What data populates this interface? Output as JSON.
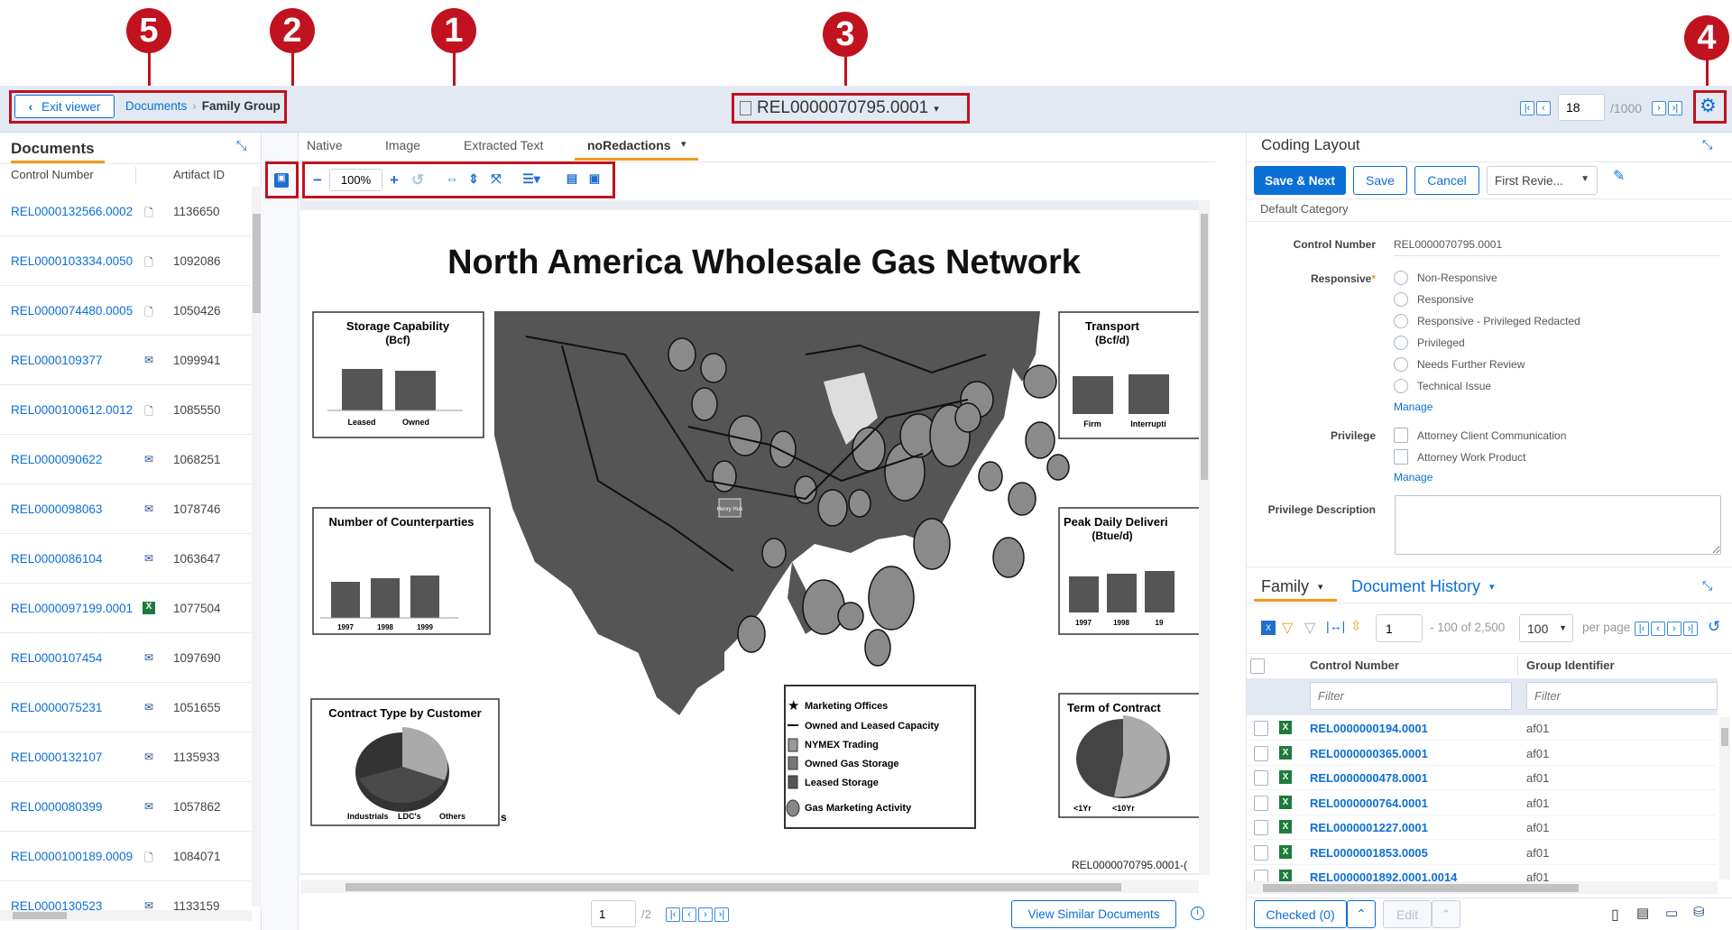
{
  "annotations": [
    "1",
    "2",
    "3",
    "4",
    "5"
  ],
  "header": {
    "exit_label": "Exit viewer",
    "breadcrumb": [
      "Documents",
      "Family Group"
    ],
    "doc_title": "REL0000070795.0001",
    "page_input": "18",
    "page_total": "/1000"
  },
  "documents_panel": {
    "title": "Documents",
    "columns": [
      "Control Number",
      "Artifact ID"
    ],
    "rows": [
      {
        "cn": "REL0000132566.0002",
        "icon": "file",
        "aid": "1136650"
      },
      {
        "cn": "REL0000103334.0050",
        "icon": "file",
        "aid": "1092086"
      },
      {
        "cn": "REL0000074480.0005",
        "icon": "file",
        "aid": "1050426"
      },
      {
        "cn": "REL0000109377",
        "icon": "email",
        "aid": "1099941"
      },
      {
        "cn": "REL0000100612.0012",
        "icon": "file",
        "aid": "1085550"
      },
      {
        "cn": "REL0000090622",
        "icon": "email",
        "aid": "1068251"
      },
      {
        "cn": "REL0000098063",
        "icon": "email",
        "aid": "1078746"
      },
      {
        "cn": "REL0000086104",
        "icon": "email",
        "aid": "1063647"
      },
      {
        "cn": "REL0000097199.0001",
        "icon": "excel",
        "aid": "1077504"
      },
      {
        "cn": "REL0000107454",
        "icon": "email",
        "aid": "1097690"
      },
      {
        "cn": "REL0000075231",
        "icon": "email",
        "aid": "1051655"
      },
      {
        "cn": "REL0000132107",
        "icon": "email",
        "aid": "1135933"
      },
      {
        "cn": "REL0000080399",
        "icon": "email",
        "aid": "1057862"
      },
      {
        "cn": "REL0000100189.0009",
        "icon": "file",
        "aid": "1084071"
      },
      {
        "cn": "REL0000130523",
        "icon": "email",
        "aid": "1133159"
      }
    ]
  },
  "viewer": {
    "tabs": [
      "Native",
      "Image",
      "Extracted Text",
      "noRedactions"
    ],
    "active_tab": "noRedactions",
    "zoom": "100%",
    "page_input": "1",
    "page_total": "/2",
    "view_similar": "View Similar Documents",
    "document": {
      "title": "North America Wholesale Gas Network",
      "storage": {
        "title": "Storage Capability",
        "unit": "(Bcf)",
        "bars": [
          "Leased",
          "Owned"
        ]
      },
      "transport": {
        "title": "Transport",
        "unit": "(Bcf/d)",
        "bars": [
          "Firm",
          "Interrupti"
        ]
      },
      "counterparties": {
        "title": "Number of Counterparties",
        "bars": [
          "1997",
          "1998",
          "1999"
        ]
      },
      "peak": {
        "title": "Peak Daily Deliveri",
        "unit": "(Btue/d)",
        "bars": [
          "1997",
          "1998",
          "19"
        ]
      },
      "contract_type": {
        "title": "Contract Type by Customer",
        "legend": [
          "Industrials",
          "LDC's",
          "Others"
        ]
      },
      "term": {
        "title": "Term of Contract",
        "legend": [
          "<1Yr",
          "<10Yr"
        ]
      },
      "legend": [
        "Marketing Offices",
        "Owned and Leased Capacity",
        "NYMEX Trading",
        "Owned Gas Storage",
        "Leased Storage",
        "Gas Marketing Activity"
      ],
      "hub_label": "Henry Hub",
      "stray": "s",
      "footer": "REL0000070795.0001-("
    }
  },
  "coding": {
    "title": "Coding Layout",
    "save_next": "Save & Next",
    "save": "Save",
    "cancel": "Cancel",
    "layout_select": "First Revie...",
    "category": "Default Category",
    "control_number_label": "Control Number",
    "control_number_value": "REL0000070795.0001",
    "responsive_label": "Responsive",
    "required_mark": "*",
    "responsive_options": [
      "Non-Responsive",
      "Responsive",
      "Responsive - Privileged Redacted",
      "Privileged",
      "Needs Further Review",
      "Technical Issue"
    ],
    "manage": "Manage",
    "privilege_label": "Privilege",
    "privilege_options": [
      "Attorney Client Communication",
      "Attorney Work Product"
    ],
    "privilege_desc_label": "Privilege Description",
    "privilege_desc_value": ""
  },
  "family": {
    "tabs": [
      "Family",
      "Document History"
    ],
    "page_input": "1",
    "range": "- 100 of 2,500",
    "per_page_value": "100",
    "per_page_label": "per page",
    "columns": [
      "Control Number",
      "Group Identifier"
    ],
    "filter_placeholder": "Filter",
    "rows": [
      {
        "cn": "REL0000000194.0001",
        "gi": "af01"
      },
      {
        "cn": "REL0000000365.0001",
        "gi": "af01"
      },
      {
        "cn": "REL0000000478.0001",
        "gi": "af01"
      },
      {
        "cn": "REL0000000764.0001",
        "gi": "af01"
      },
      {
        "cn": "REL0000001227.0001",
        "gi": "af01"
      },
      {
        "cn": "REL0000001853.0005",
        "gi": "af01"
      },
      {
        "cn": "REL0000001892.0001.0014",
        "gi": "af01"
      }
    ],
    "checked": "Checked (0)",
    "edit": "Edit"
  },
  "colors": {
    "accent": "#0b6fd6",
    "annotation": "#c1121f",
    "tab_underline": "#f29a1f",
    "excel": "#1e7b3c"
  }
}
